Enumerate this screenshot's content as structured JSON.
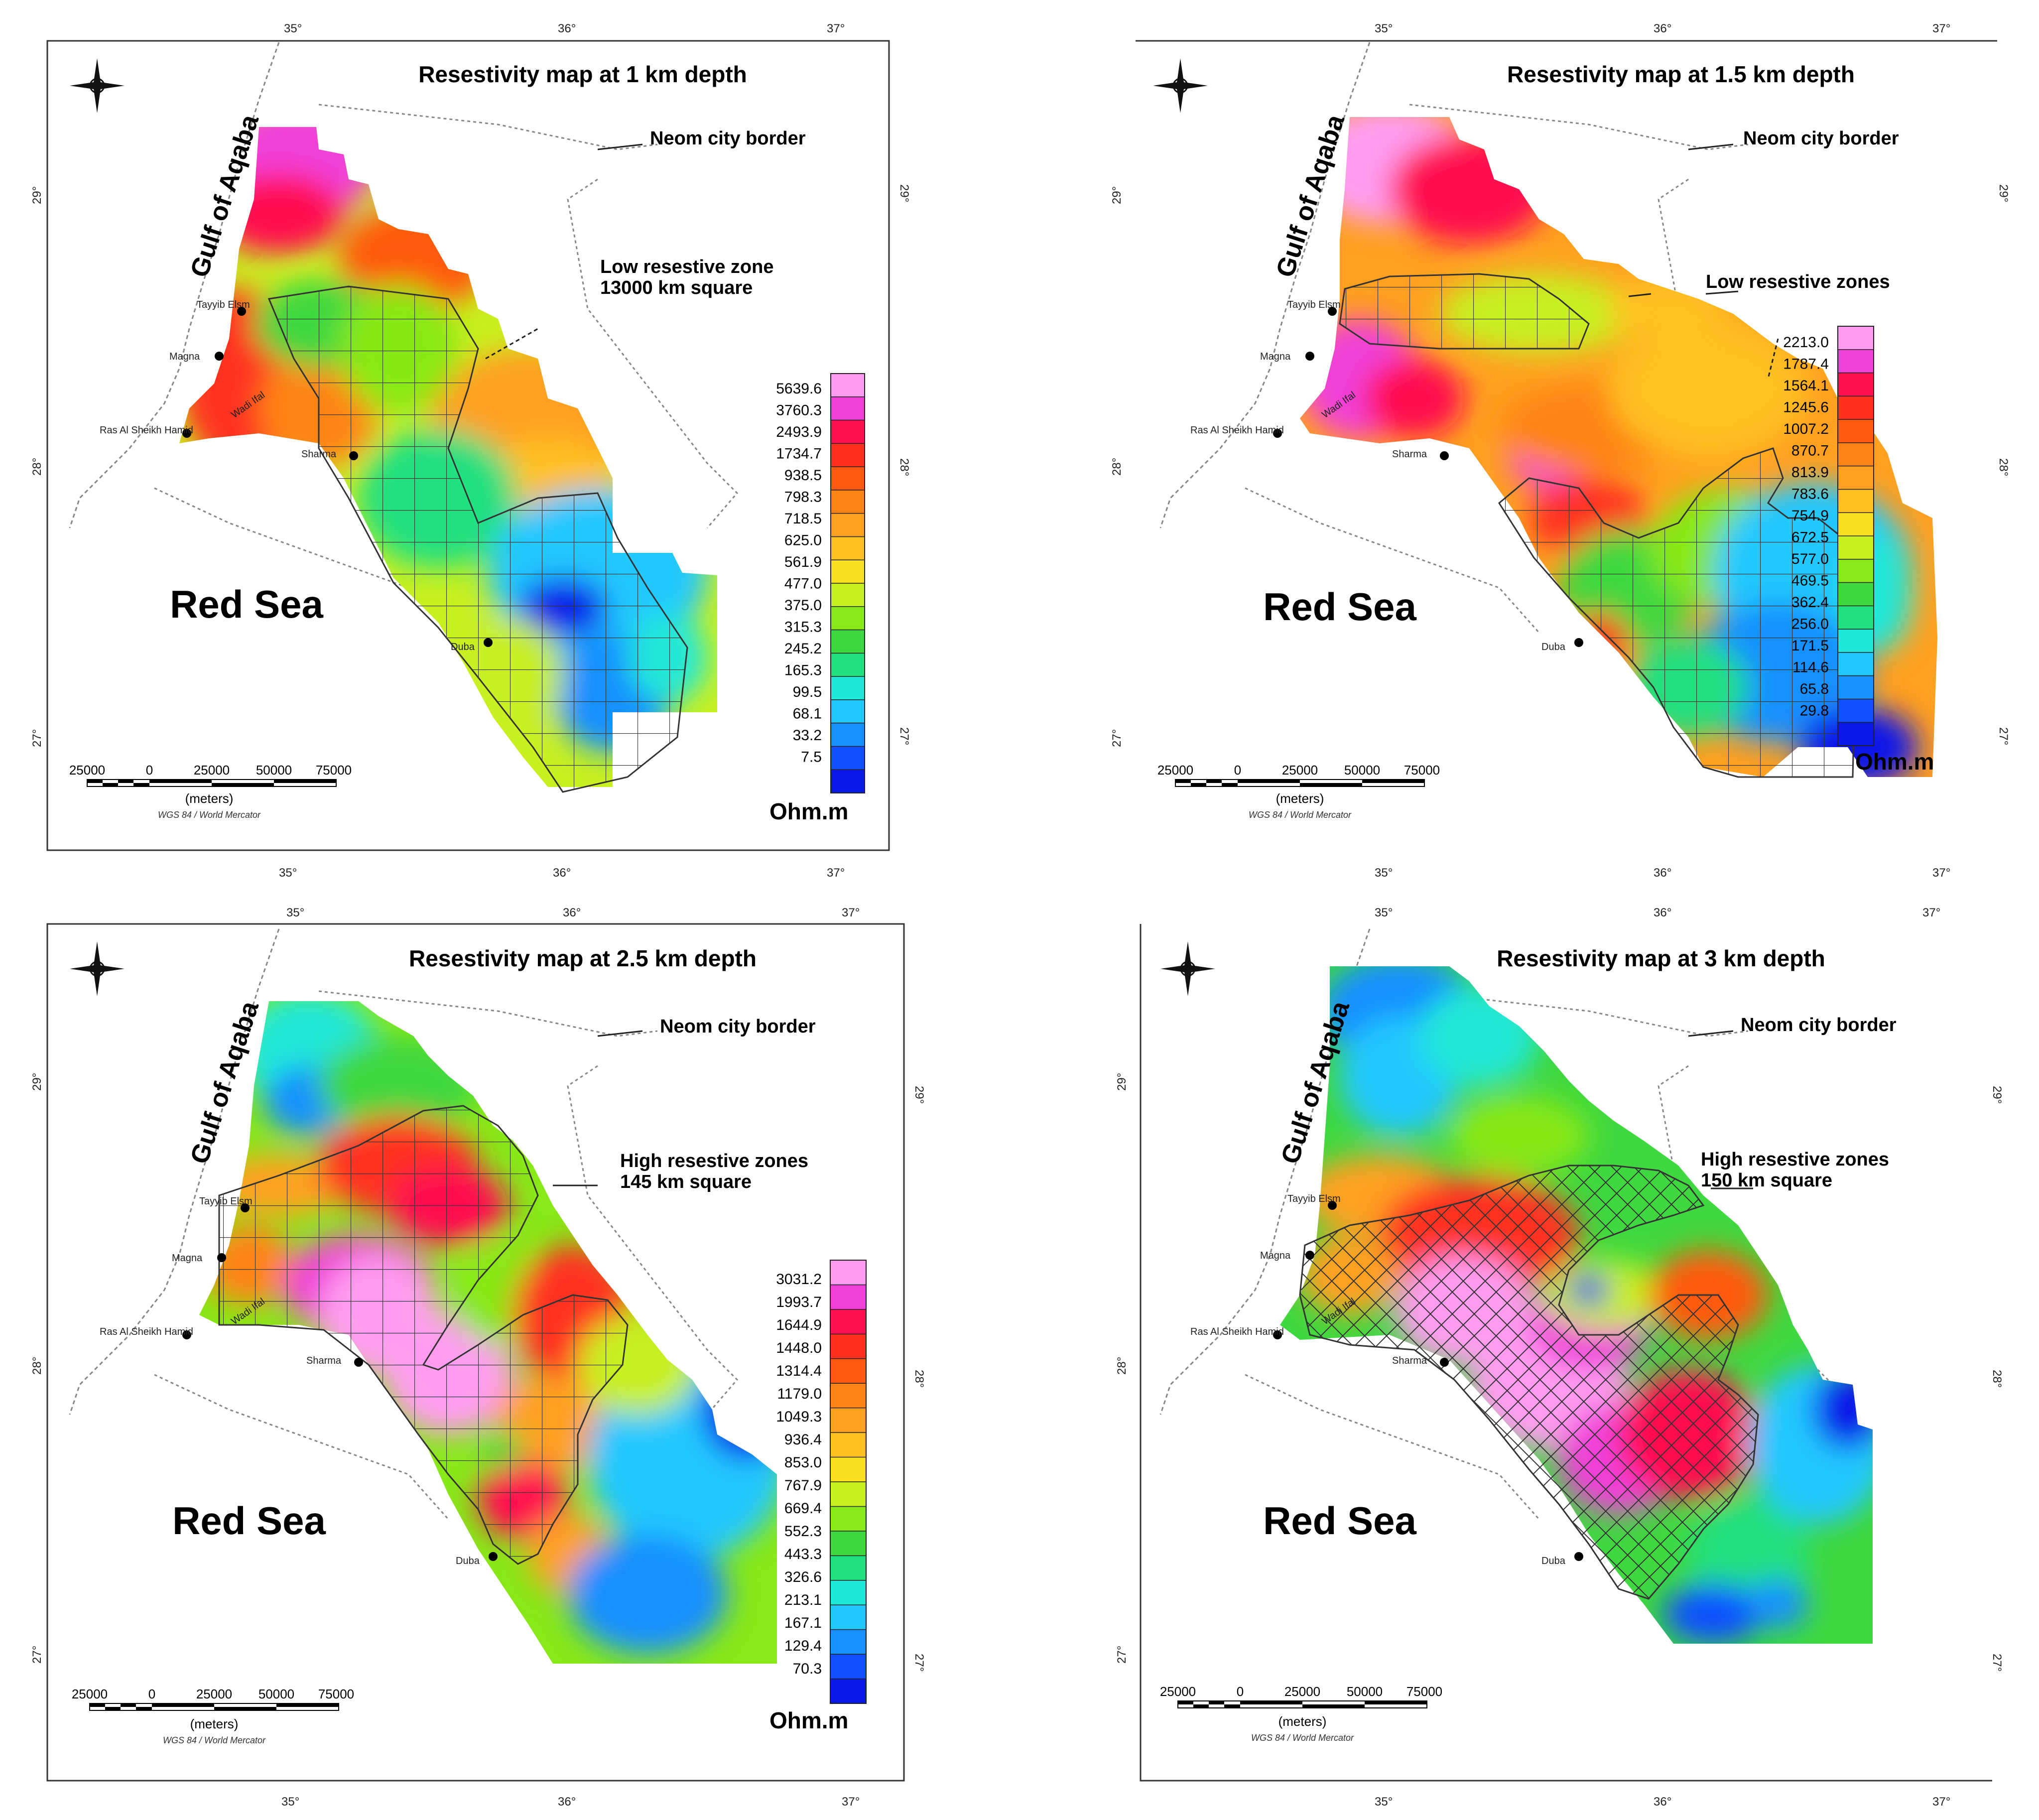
{
  "colors": {
    "ramp_1": [
      "#ff9cf0",
      "#f040d8",
      "#ff1050",
      "#ff3020",
      "#ff5a10",
      "#ff8418",
      "#ffa020",
      "#ffc020",
      "#f8e020",
      "#c8f020",
      "#88e818",
      "#40d840",
      "#20e080",
      "#20e8d8",
      "#20c8ff",
      "#1890ff",
      "#1050ff",
      "#0a18e8"
    ],
    "ramp_2": [
      "#ff9cf0",
      "#f040d8",
      "#ff1050",
      "#ff3020",
      "#ff5a10",
      "#ff8418",
      "#ffa020",
      "#ffc020",
      "#f8e020",
      "#c8f020",
      "#88e818",
      "#40d840",
      "#20e080",
      "#20e8d8",
      "#20c8ff",
      "#1890ff",
      "#1050ff",
      "#0a18e8"
    ],
    "ramp_3": [
      "#ff9cf0",
      "#f040d8",
      "#ff1050",
      "#ff3020",
      "#ff5a10",
      "#ff8418",
      "#ffa020",
      "#ffc020",
      "#f8e020",
      "#c8f020",
      "#88e818",
      "#40d840",
      "#20e080",
      "#20e8d8",
      "#20c8ff",
      "#1890ff",
      "#1050ff",
      "#0a18e8"
    ],
    "ramp_4": [
      "#ff9cf0",
      "#f040d8",
      "#ff1050",
      "#ff3020",
      "#ff5a10",
      "#ff8418",
      "#ffa020",
      "#ffc020",
      "#f8e020",
      "#c8f020",
      "#88e818",
      "#40d840",
      "#20e080",
      "#20e8d8",
      "#20c8ff",
      "#1890ff",
      "#1050ff",
      "#0a18e8"
    ]
  },
  "panels": [
    {
      "title": "Resestivity map at 1 km depth",
      "gulf": "Gulf of Aqaba",
      "sea": "Red Sea",
      "border_label": "Neom city border",
      "zone_label_1": "Low resestive zone",
      "zone_label_2": "13000 km square",
      "unit": "Ohm.m",
      "legend": [
        "5639.6",
        "3760.3",
        "2493.9",
        "1734.7",
        "938.5",
        "798.3",
        "718.5",
        "625.0",
        "561.9",
        "477.0",
        "375.0",
        "315.3",
        "245.2",
        "165.3",
        "99.5",
        "68.1",
        "33.2",
        "7.5"
      ],
      "lon_top": [
        "35°",
        "36°",
        "37°"
      ],
      "lon_bottom": [
        "35°",
        "36°",
        "37°"
      ],
      "lat_left": [
        "29°",
        "28°",
        "27°"
      ],
      "lat_right": [
        "29°",
        "28°",
        "27°"
      ],
      "scale": [
        "25000",
        "0",
        "25000",
        "50000",
        "75000"
      ],
      "scale_unit": "(meters)",
      "projection": "WGS 84 / World Mercator",
      "cities": [
        "Tayyib Elsm",
        "Magna",
        "Ras Al Sheikh Hamid",
        "Sharma",
        "Duba",
        "Wadi Ifal"
      ]
    },
    {
      "title": "Resestivity map at 1.5 km depth",
      "gulf": "Gulf of Aqaba",
      "sea": "Red Sea",
      "border_label": "Neom city border",
      "zone_label_1": "Low resestive zones",
      "zone_label_2": "",
      "unit": "Ohm.m",
      "legend": [
        "2213.0",
        "1787.4",
        "1564.1",
        "1245.6",
        "1007.2",
        "870.7",
        "813.9",
        "783.6",
        "754.9",
        "672.5",
        "577.0",
        "469.5",
        "362.4",
        "256.0",
        "171.5",
        "114.6",
        "65.8",
        "29.8"
      ],
      "lon_top": [
        "35°",
        "36°",
        "37°"
      ],
      "lon_bottom": [
        "35°",
        "36°",
        "37°"
      ],
      "lat_left": [
        "29°",
        "28°",
        "27°"
      ],
      "lat_right": [
        "29°",
        "28°",
        "27°"
      ],
      "scale": [
        "25000",
        "0",
        "25000",
        "50000",
        "75000"
      ],
      "scale_unit": "(meters)",
      "projection": "WGS 84 / World Mercator",
      "cities": [
        "Tayyib Elsm",
        "Magna",
        "Ras Al Sheikh Hamid",
        "Sharma",
        "Duba",
        "Wadi Ifal"
      ]
    },
    {
      "title": "Resestivity map at 2.5 km depth",
      "gulf": "Gulf of Aqaba",
      "sea": "Red Sea",
      "border_label": "Neom city border",
      "zone_label_1": "High resestive zones",
      "zone_label_2": "145 km square",
      "unit": "Ohm.m",
      "legend": [
        "3031.2",
        "1993.7",
        "1644.9",
        "1448.0",
        "1314.4",
        "1179.0",
        "1049.3",
        "936.4",
        "853.0",
        "767.9",
        "669.4",
        "552.3",
        "443.3",
        "326.6",
        "213.1",
        "167.1",
        "129.4",
        "70.3"
      ],
      "lon_top": [
        "35°",
        "36°",
        "37°"
      ],
      "lon_bottom": [
        "35°",
        "36°",
        "37°"
      ],
      "lat_left": [
        "29°",
        "28°",
        "27°"
      ],
      "lat_right": [
        "29°",
        "28°",
        "27°"
      ],
      "scale": [
        "25000",
        "0",
        "25000",
        "50000",
        "75000"
      ],
      "scale_unit": "(meters)",
      "projection": "WGS 84 / World Mercator",
      "cities": [
        "Tayyib Elsm",
        "Magna",
        "Ras Al Sheikh Hamid",
        "Sharma",
        "Duba",
        "Wadi Ifal"
      ]
    },
    {
      "title": "Resestivity map at 3 km depth",
      "gulf": "Gulf of Aqaba",
      "sea": "Red Sea",
      "border_label": "Neom city border",
      "zone_label_1": "High resestive zones",
      "zone_label_2": "150 km square",
      "unit": "",
      "legend": [],
      "lon_top": [
        "35°",
        "36°",
        "37°"
      ],
      "lon_bottom": [
        "35°",
        "36°",
        "37°"
      ],
      "lat_left": [
        "29°",
        "28°",
        "27°"
      ],
      "lat_right": [
        "29°",
        "28°",
        "27°"
      ],
      "scale": [
        "25000",
        "0",
        "25000",
        "50000",
        "75000"
      ],
      "scale_unit": "(meters)",
      "projection": "WGS 84 / World Mercator",
      "cities": [
        "Tayyib Elsm",
        "Magna",
        "Ras Al Sheikh Hamid",
        "Sharma",
        "Duba",
        "Wadi Ifal"
      ]
    }
  ]
}
